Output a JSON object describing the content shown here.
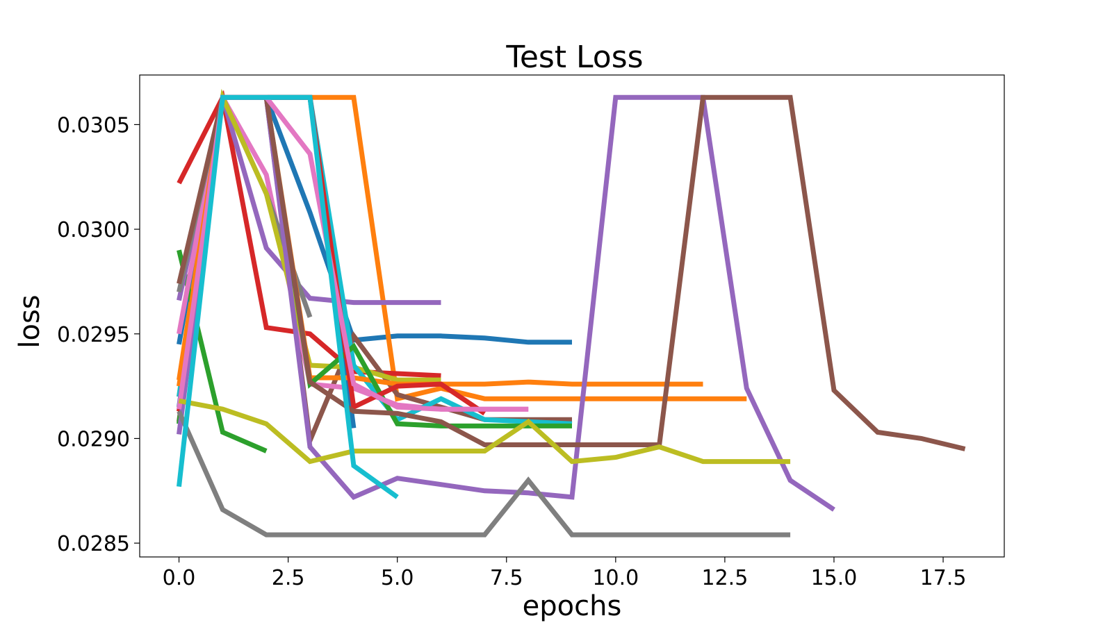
{
  "chart_data": {
    "type": "line",
    "title": "Test Loss",
    "xlabel": "epochs",
    "ylabel": "loss",
    "xlim": [
      -0.9,
      18.9
    ],
    "ylim": [
      0.028434,
      0.030737
    ],
    "x_ticks": [
      0.0,
      2.5,
      5.0,
      7.5,
      10.0,
      12.5,
      15.0,
      17.5
    ],
    "x_tick_labels": [
      "0.0",
      "2.5",
      "5.0",
      "7.5",
      "10.0",
      "12.5",
      "15.0",
      "17.5"
    ],
    "y_ticks": [
      0.0285,
      0.029,
      0.0295,
      0.03,
      0.0305
    ],
    "y_tick_labels": [
      "0.0285",
      "0.0290",
      "0.0295",
      "0.0300",
      "0.0305"
    ],
    "grid": false,
    "legend": "none",
    "series": [
      {
        "color": "#1f77b4",
        "x": [
          0,
          1,
          2,
          3,
          4,
          5,
          6,
          7,
          8,
          9
        ],
        "y": [
          0.02945,
          0.03063,
          0.03063,
          0.03008,
          0.02947,
          0.02949,
          0.02949,
          0.02948,
          0.02946,
          0.02946
        ]
      },
      {
        "color": "#ff7f0e",
        "x": [
          0,
          1,
          2,
          3,
          4,
          5,
          6,
          7,
          8,
          9,
          10,
          11,
          12,
          13
        ],
        "y": [
          0.02928,
          0.03063,
          0.03063,
          0.03063,
          0.03063,
          0.02919,
          0.02924,
          0.02919,
          0.02919,
          0.02919,
          0.02919,
          0.02919,
          0.02919,
          0.02919
        ]
      },
      {
        "color": "#2ca02c",
        "x": [
          0,
          1,
          2
        ],
        "y": [
          0.0299,
          0.02903,
          0.02894
        ]
      },
      {
        "color": "#d62728",
        "x": [
          0,
          1,
          2,
          3,
          4,
          5,
          6
        ],
        "y": [
          0.03022,
          0.03063,
          0.02953,
          0.0295,
          0.02932,
          0.02931,
          0.0293
        ]
      },
      {
        "color": "#9467bd",
        "x": [
          0,
          1,
          2,
          3,
          4,
          5,
          6
        ],
        "y": [
          0.02966,
          0.03063,
          0.02991,
          0.02967,
          0.02965,
          0.02965,
          0.02965
        ]
      },
      {
        "color": "#8c564b",
        "x": [
          0,
          1,
          2,
          3,
          4,
          5,
          6,
          7,
          8,
          9
        ],
        "y": [
          0.02908,
          0.03063,
          0.03063,
          0.02899,
          0.02949,
          0.02921,
          0.02915,
          0.02909,
          0.02909,
          0.02909
        ]
      },
      {
        "color": "#e377c2",
        "x": [
          0,
          1,
          2,
          3,
          4,
          5,
          6,
          7,
          8
        ],
        "y": [
          0.0295,
          0.03063,
          0.03026,
          0.02926,
          0.02924,
          0.02916,
          0.02914,
          0.02914,
          0.02914
        ]
      },
      {
        "color": "#7f7f7f",
        "x": [
          0,
          1,
          2,
          3
        ],
        "y": [
          0.0297,
          0.03063,
          0.03017,
          0.02958
        ]
      },
      {
        "color": "#bcbd22",
        "x": [
          0,
          1,
          2,
          3,
          4,
          5,
          6
        ],
        "y": [
          0.0292,
          0.03063,
          0.03017,
          0.02935,
          0.02934,
          0.02928,
          0.02928
        ]
      },
      {
        "color": "#17becf",
        "x": [
          0,
          1,
          2,
          3,
          4,
          5,
          6,
          7,
          8,
          9
        ],
        "y": [
          0.0292,
          0.03063,
          0.03063,
          0.03063,
          0.02935,
          0.02909,
          0.02919,
          0.02909,
          0.02908,
          0.02907
        ]
      },
      {
        "color": "#1f77b4",
        "x": [
          0,
          1,
          2,
          3,
          4
        ],
        "y": [
          0.02915,
          0.03063,
          0.03063,
          0.03063,
          0.02905
        ]
      },
      {
        "color": "#ff7f0e",
        "x": [
          0,
          1,
          2,
          3,
          4,
          5,
          6,
          7,
          8,
          9,
          10,
          11,
          12
        ],
        "y": [
          0.02925,
          0.03063,
          0.03063,
          0.02929,
          0.02929,
          0.02926,
          0.02926,
          0.02926,
          0.02927,
          0.02926,
          0.02926,
          0.02926,
          0.02926
        ]
      },
      {
        "color": "#2ca02c",
        "x": [
          0,
          1,
          2,
          3,
          4,
          5,
          6,
          7,
          8,
          9
        ],
        "y": [
          0.02907,
          0.03063,
          0.03063,
          0.02926,
          0.02944,
          0.02907,
          0.02906,
          0.02906,
          0.02906,
          0.02906
        ]
      },
      {
        "color": "#d62728",
        "x": [
          0,
          1,
          2,
          3,
          4,
          5,
          6,
          7
        ],
        "y": [
          0.02913,
          0.03063,
          0.03063,
          0.03063,
          0.02915,
          0.02925,
          0.02926,
          0.02912
        ]
      },
      {
        "color": "#9467bd",
        "x": [
          0,
          1,
          2,
          3,
          4,
          5,
          6,
          7,
          8,
          9,
          10,
          11,
          12,
          13,
          14,
          15
        ],
        "y": [
          0.02902,
          0.03063,
          0.03063,
          0.02896,
          0.02872,
          0.02881,
          0.02878,
          0.02875,
          0.02874,
          0.02872,
          0.03063,
          0.03063,
          0.03063,
          0.02924,
          0.0288,
          0.02866
        ]
      },
      {
        "color": "#8c564b",
        "x": [
          0,
          1,
          2,
          3,
          4,
          5,
          6,
          7,
          8,
          9,
          10,
          11,
          12,
          13,
          14,
          15,
          16,
          17,
          18
        ],
        "y": [
          0.02974,
          0.03063,
          0.03063,
          0.02927,
          0.02913,
          0.02912,
          0.02908,
          0.02897,
          0.02897,
          0.02897,
          0.02897,
          0.02897,
          0.03063,
          0.03063,
          0.03063,
          0.02923,
          0.02903,
          0.029,
          0.02895
        ]
      },
      {
        "color": "#e377c2",
        "x": [
          0,
          1,
          2,
          3,
          4,
          5,
          6,
          7,
          8
        ],
        "y": [
          0.02914,
          0.03063,
          0.03063,
          0.03036,
          0.02926,
          0.02915,
          0.02914,
          0.02914,
          0.02914
        ]
      },
      {
        "color": "#7f7f7f",
        "x": [
          0,
          1,
          2,
          3,
          4,
          5,
          6,
          7,
          8,
          9,
          10,
          11,
          12,
          13,
          14
        ],
        "y": [
          0.02913,
          0.02866,
          0.02854,
          0.02854,
          0.02854,
          0.02854,
          0.02854,
          0.02854,
          0.0288,
          0.02854,
          0.02854,
          0.02854,
          0.02854,
          0.02854,
          0.02854
        ]
      },
      {
        "color": "#bcbd22",
        "x": [
          0,
          1,
          2,
          3,
          4,
          5,
          6,
          7,
          8,
          9,
          10,
          11,
          12,
          13,
          14
        ],
        "y": [
          0.02918,
          0.02914,
          0.02907,
          0.02889,
          0.02894,
          0.02894,
          0.02894,
          0.02894,
          0.02908,
          0.02889,
          0.02891,
          0.02896,
          0.02889,
          0.02889,
          0.02889
        ]
      },
      {
        "color": "#17becf",
        "x": [
          0,
          1,
          2,
          3,
          4,
          5
        ],
        "y": [
          0.02877,
          0.03063,
          0.03063,
          0.03063,
          0.02887,
          0.02872
        ]
      }
    ]
  }
}
